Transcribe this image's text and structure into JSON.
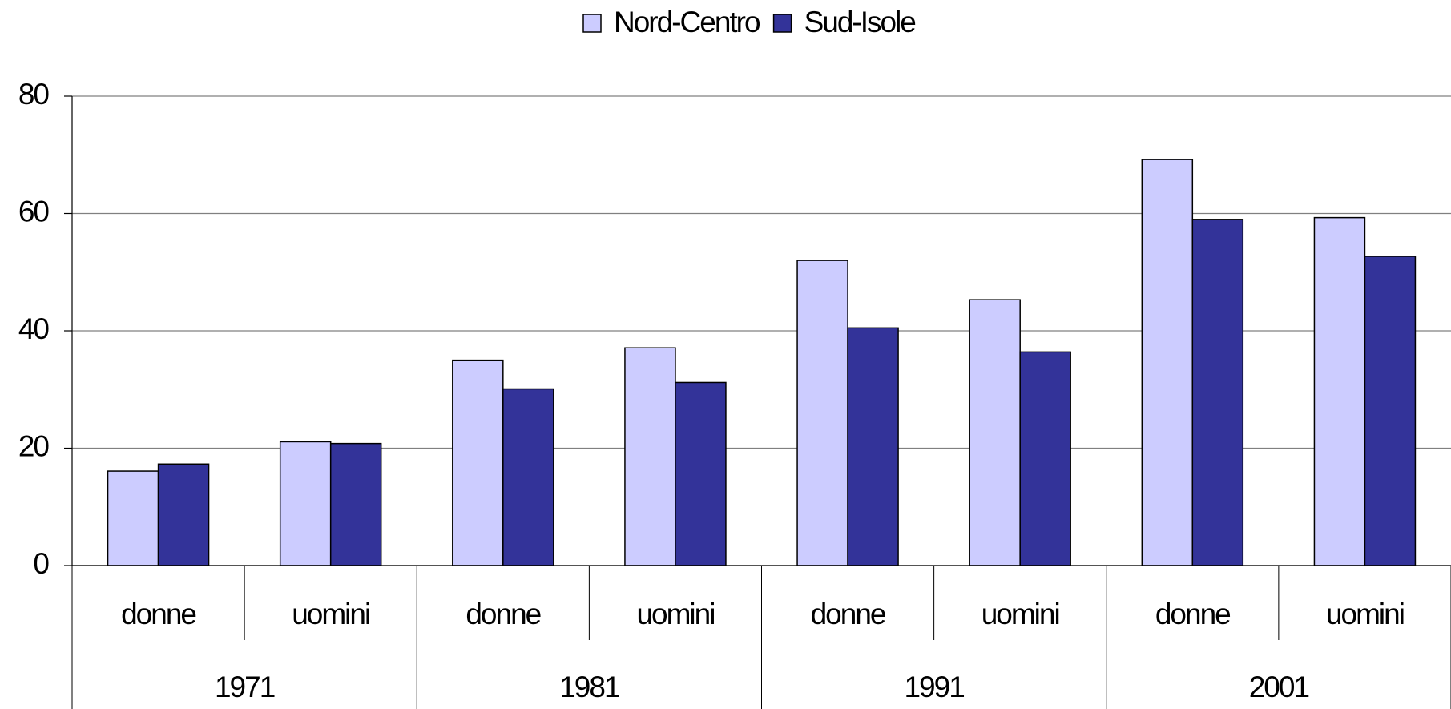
{
  "chart_data": {
    "type": "bar",
    "categories": [
      "donne",
      "uomini",
      "donne",
      "uomini",
      "donne",
      "uomini",
      "donne",
      "uomini"
    ],
    "groups": [
      "1971",
      "1981",
      "1991",
      "2001"
    ],
    "series": [
      {
        "name": "Nord-Centro",
        "color": "#ccccff",
        "values": [
          16.1,
          21.1,
          35.0,
          37.1,
          52.0,
          45.3,
          69.2,
          59.3
        ]
      },
      {
        "name": "Sud-Isole",
        "color": "#333399",
        "values": [
          17.3,
          20.8,
          30.1,
          31.2,
          40.5,
          36.4,
          59.0,
          52.7
        ]
      }
    ],
    "ylim": [
      0,
      80
    ],
    "yticks": [
      0,
      20,
      40,
      60,
      80
    ],
    "grid": true,
    "legend": "top"
  }
}
